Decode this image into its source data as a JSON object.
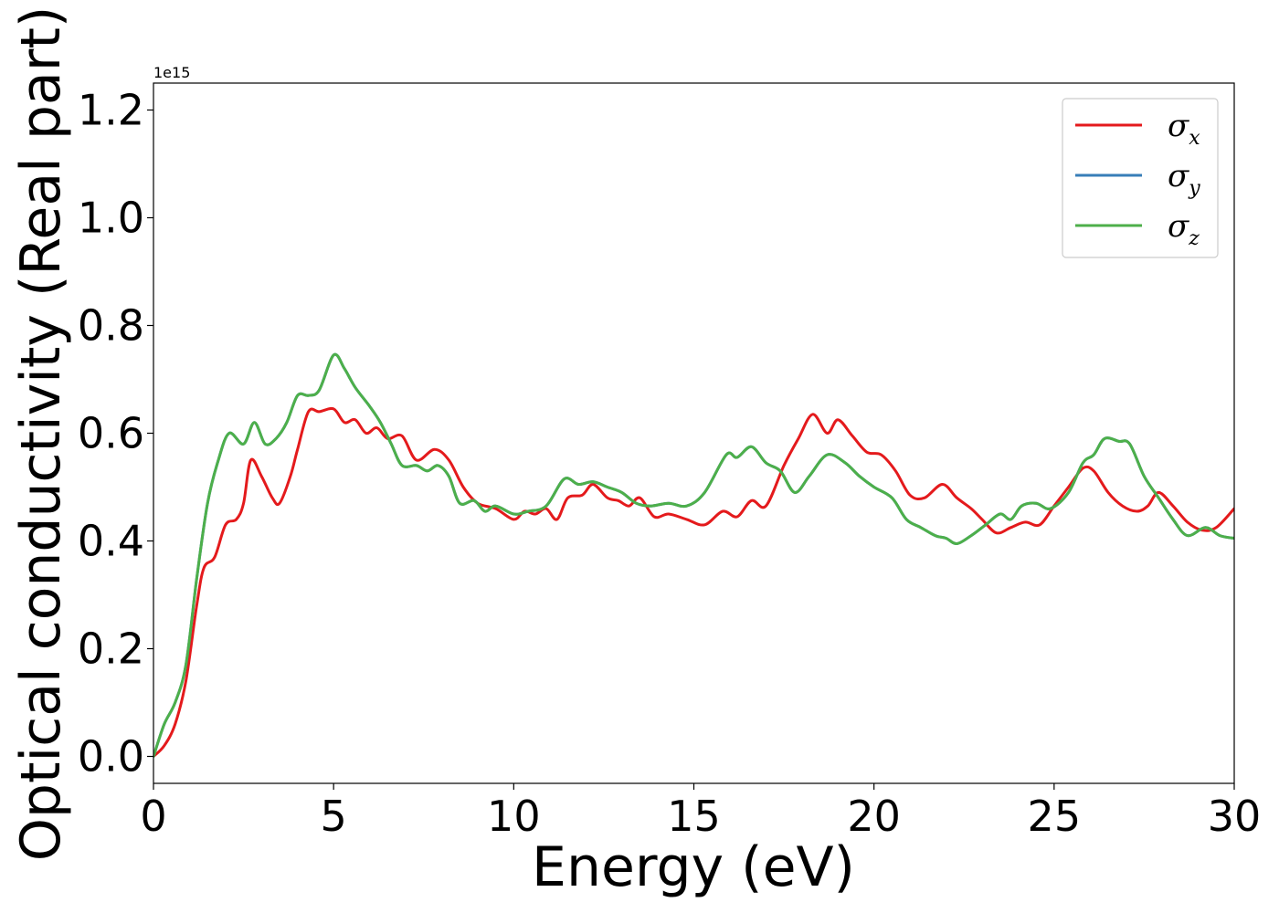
{
  "chart_data": {
    "type": "line",
    "xlabel": "Energy (eV)",
    "ylabel": "Optical conductivity (Real part)",
    "y_offset_label": "1e15",
    "xlim": [
      0,
      30
    ],
    "ylim": [
      -0.05,
      1.25
    ],
    "x_ticks": [
      0,
      5,
      10,
      15,
      20,
      25,
      30
    ],
    "x_tick_labels": [
      "0",
      "5",
      "10",
      "15",
      "20",
      "25",
      "30"
    ],
    "y_ticks": [
      0.0,
      0.2,
      0.4,
      0.6,
      0.8,
      1.0,
      1.2
    ],
    "y_tick_labels": [
      "0.0",
      "0.2",
      "0.4",
      "0.6",
      "0.8",
      "1.0",
      "1.2"
    ],
    "grid": false,
    "legend_position": "top-right",
    "series": [
      {
        "name": "σx",
        "symbol": "σ",
        "subscript": "x",
        "color": "#e41a1c",
        "points": [
          [
            0,
            0.0
          ],
          [
            0.3,
            0.02
          ],
          [
            0.6,
            0.06
          ],
          [
            0.9,
            0.14
          ],
          [
            1.2,
            0.28
          ],
          [
            1.4,
            0.35
          ],
          [
            1.7,
            0.37
          ],
          [
            2.0,
            0.43
          ],
          [
            2.3,
            0.44
          ],
          [
            2.5,
            0.47
          ],
          [
            2.7,
            0.55
          ],
          [
            3.0,
            0.52
          ],
          [
            3.3,
            0.48
          ],
          [
            3.5,
            0.47
          ],
          [
            3.8,
            0.52
          ],
          [
            4.0,
            0.57
          ],
          [
            4.3,
            0.64
          ],
          [
            4.6,
            0.64
          ],
          [
            5.0,
            0.645
          ],
          [
            5.3,
            0.62
          ],
          [
            5.6,
            0.625
          ],
          [
            5.9,
            0.6
          ],
          [
            6.2,
            0.61
          ],
          [
            6.5,
            0.59
          ],
          [
            6.9,
            0.595
          ],
          [
            7.3,
            0.55
          ],
          [
            7.8,
            0.57
          ],
          [
            8.2,
            0.55
          ],
          [
            8.6,
            0.5
          ],
          [
            9.0,
            0.47
          ],
          [
            9.5,
            0.46
          ],
          [
            10.0,
            0.44
          ],
          [
            10.3,
            0.455
          ],
          [
            10.6,
            0.45
          ],
          [
            10.9,
            0.46
          ],
          [
            11.2,
            0.44
          ],
          [
            11.5,
            0.48
          ],
          [
            11.9,
            0.485
          ],
          [
            12.2,
            0.505
          ],
          [
            12.6,
            0.48
          ],
          [
            12.9,
            0.475
          ],
          [
            13.2,
            0.465
          ],
          [
            13.5,
            0.48
          ],
          [
            13.9,
            0.445
          ],
          [
            14.3,
            0.45
          ],
          [
            14.8,
            0.44
          ],
          [
            15.3,
            0.43
          ],
          [
            15.8,
            0.455
          ],
          [
            16.2,
            0.445
          ],
          [
            16.6,
            0.475
          ],
          [
            17.0,
            0.465
          ],
          [
            17.5,
            0.54
          ],
          [
            17.9,
            0.59
          ],
          [
            18.3,
            0.635
          ],
          [
            18.7,
            0.6
          ],
          [
            19.0,
            0.625
          ],
          [
            19.4,
            0.595
          ],
          [
            19.8,
            0.565
          ],
          [
            20.2,
            0.56
          ],
          [
            20.6,
            0.53
          ],
          [
            21.0,
            0.485
          ],
          [
            21.4,
            0.48
          ],
          [
            21.9,
            0.505
          ],
          [
            22.3,
            0.48
          ],
          [
            22.7,
            0.46
          ],
          [
            23.0,
            0.44
          ],
          [
            23.4,
            0.415
          ],
          [
            23.8,
            0.425
          ],
          [
            24.2,
            0.435
          ],
          [
            24.6,
            0.43
          ],
          [
            25.0,
            0.465
          ],
          [
            25.4,
            0.5
          ],
          [
            25.8,
            0.535
          ],
          [
            26.1,
            0.53
          ],
          [
            26.5,
            0.49
          ],
          [
            26.9,
            0.465
          ],
          [
            27.3,
            0.455
          ],
          [
            27.6,
            0.465
          ],
          [
            27.9,
            0.49
          ],
          [
            28.3,
            0.465
          ],
          [
            28.7,
            0.435
          ],
          [
            29.1,
            0.42
          ],
          [
            29.5,
            0.425
          ],
          [
            30.0,
            0.46
          ]
        ]
      },
      {
        "name": "σy",
        "symbol": "σ",
        "subscript": "y",
        "color": "#377eb8",
        "points": [
          [
            0,
            0.0
          ],
          [
            0.3,
            0.06
          ],
          [
            0.6,
            0.1
          ],
          [
            0.9,
            0.17
          ],
          [
            1.2,
            0.33
          ],
          [
            1.5,
            0.47
          ],
          [
            1.8,
            0.55
          ],
          [
            2.1,
            0.6
          ],
          [
            2.5,
            0.58
          ],
          [
            2.8,
            0.62
          ],
          [
            3.1,
            0.58
          ],
          [
            3.4,
            0.59
          ],
          [
            3.7,
            0.62
          ],
          [
            4.0,
            0.67
          ],
          [
            4.3,
            0.67
          ],
          [
            4.6,
            0.68
          ],
          [
            5.0,
            0.745
          ],
          [
            5.3,
            0.72
          ],
          [
            5.6,
            0.685
          ],
          [
            6.0,
            0.65
          ],
          [
            6.3,
            0.62
          ],
          [
            6.6,
            0.58
          ],
          [
            6.9,
            0.54
          ],
          [
            7.3,
            0.54
          ],
          [
            7.6,
            0.53
          ],
          [
            7.9,
            0.54
          ],
          [
            8.2,
            0.52
          ],
          [
            8.5,
            0.47
          ],
          [
            8.9,
            0.475
          ],
          [
            9.2,
            0.455
          ],
          [
            9.5,
            0.465
          ],
          [
            10.0,
            0.45
          ],
          [
            10.4,
            0.455
          ],
          [
            10.9,
            0.465
          ],
          [
            11.4,
            0.515
          ],
          [
            11.8,
            0.505
          ],
          [
            12.2,
            0.51
          ],
          [
            12.6,
            0.5
          ],
          [
            13.0,
            0.49
          ],
          [
            13.4,
            0.47
          ],
          [
            13.8,
            0.465
          ],
          [
            14.3,
            0.47
          ],
          [
            14.8,
            0.465
          ],
          [
            15.3,
            0.49
          ],
          [
            15.9,
            0.56
          ],
          [
            16.2,
            0.555
          ],
          [
            16.6,
            0.575
          ],
          [
            17.0,
            0.545
          ],
          [
            17.4,
            0.53
          ],
          [
            17.8,
            0.49
          ],
          [
            18.2,
            0.52
          ],
          [
            18.7,
            0.56
          ],
          [
            19.2,
            0.545
          ],
          [
            19.6,
            0.52
          ],
          [
            20.0,
            0.5
          ],
          [
            20.5,
            0.48
          ],
          [
            20.9,
            0.44
          ],
          [
            21.3,
            0.425
          ],
          [
            21.7,
            0.41
          ],
          [
            22.0,
            0.405
          ],
          [
            22.3,
            0.395
          ],
          [
            22.7,
            0.41
          ],
          [
            23.1,
            0.43
          ],
          [
            23.5,
            0.45
          ],
          [
            23.8,
            0.44
          ],
          [
            24.1,
            0.465
          ],
          [
            24.5,
            0.47
          ],
          [
            24.9,
            0.46
          ],
          [
            25.4,
            0.49
          ],
          [
            25.8,
            0.545
          ],
          [
            26.1,
            0.56
          ],
          [
            26.4,
            0.59
          ],
          [
            26.8,
            0.585
          ],
          [
            27.1,
            0.58
          ],
          [
            27.5,
            0.52
          ],
          [
            27.9,
            0.48
          ],
          [
            28.3,
            0.44
          ],
          [
            28.7,
            0.41
          ],
          [
            29.2,
            0.425
          ],
          [
            29.6,
            0.41
          ],
          [
            30.0,
            0.405
          ]
        ]
      },
      {
        "name": "σz",
        "symbol": "σ",
        "subscript": "z",
        "color": "#4daf4a",
        "points": [
          [
            0,
            0.0
          ],
          [
            0.3,
            0.06
          ],
          [
            0.6,
            0.1
          ],
          [
            0.9,
            0.17
          ],
          [
            1.2,
            0.33
          ],
          [
            1.5,
            0.47
          ],
          [
            1.8,
            0.55
          ],
          [
            2.1,
            0.6
          ],
          [
            2.5,
            0.58
          ],
          [
            2.8,
            0.62
          ],
          [
            3.1,
            0.58
          ],
          [
            3.4,
            0.59
          ],
          [
            3.7,
            0.62
          ],
          [
            4.0,
            0.67
          ],
          [
            4.3,
            0.67
          ],
          [
            4.6,
            0.68
          ],
          [
            5.0,
            0.745
          ],
          [
            5.3,
            0.72
          ],
          [
            5.6,
            0.685
          ],
          [
            6.0,
            0.65
          ],
          [
            6.3,
            0.62
          ],
          [
            6.6,
            0.58
          ],
          [
            6.9,
            0.54
          ],
          [
            7.3,
            0.54
          ],
          [
            7.6,
            0.53
          ],
          [
            7.9,
            0.54
          ],
          [
            8.2,
            0.52
          ],
          [
            8.5,
            0.47
          ],
          [
            8.9,
            0.475
          ],
          [
            9.2,
            0.455
          ],
          [
            9.5,
            0.465
          ],
          [
            10.0,
            0.45
          ],
          [
            10.4,
            0.455
          ],
          [
            10.9,
            0.465
          ],
          [
            11.4,
            0.515
          ],
          [
            11.8,
            0.505
          ],
          [
            12.2,
            0.51
          ],
          [
            12.6,
            0.5
          ],
          [
            13.0,
            0.49
          ],
          [
            13.4,
            0.47
          ],
          [
            13.8,
            0.465
          ],
          [
            14.3,
            0.47
          ],
          [
            14.8,
            0.465
          ],
          [
            15.3,
            0.49
          ],
          [
            15.9,
            0.56
          ],
          [
            16.2,
            0.555
          ],
          [
            16.6,
            0.575
          ],
          [
            17.0,
            0.545
          ],
          [
            17.4,
            0.53
          ],
          [
            17.8,
            0.49
          ],
          [
            18.2,
            0.52
          ],
          [
            18.7,
            0.56
          ],
          [
            19.2,
            0.545
          ],
          [
            19.6,
            0.52
          ],
          [
            20.0,
            0.5
          ],
          [
            20.5,
            0.48
          ],
          [
            20.9,
            0.44
          ],
          [
            21.3,
            0.425
          ],
          [
            21.7,
            0.41
          ],
          [
            22.0,
            0.405
          ],
          [
            22.3,
            0.395
          ],
          [
            22.7,
            0.41
          ],
          [
            23.1,
            0.43
          ],
          [
            23.5,
            0.45
          ],
          [
            23.8,
            0.44
          ],
          [
            24.1,
            0.465
          ],
          [
            24.5,
            0.47
          ],
          [
            24.9,
            0.46
          ],
          [
            25.4,
            0.49
          ],
          [
            25.8,
            0.545
          ],
          [
            26.1,
            0.56
          ],
          [
            26.4,
            0.59
          ],
          [
            26.8,
            0.585
          ],
          [
            27.1,
            0.58
          ],
          [
            27.5,
            0.52
          ],
          [
            27.9,
            0.48
          ],
          [
            28.3,
            0.44
          ],
          [
            28.7,
            0.41
          ],
          [
            29.2,
            0.425
          ],
          [
            29.6,
            0.41
          ],
          [
            30.0,
            0.405
          ]
        ]
      }
    ]
  }
}
